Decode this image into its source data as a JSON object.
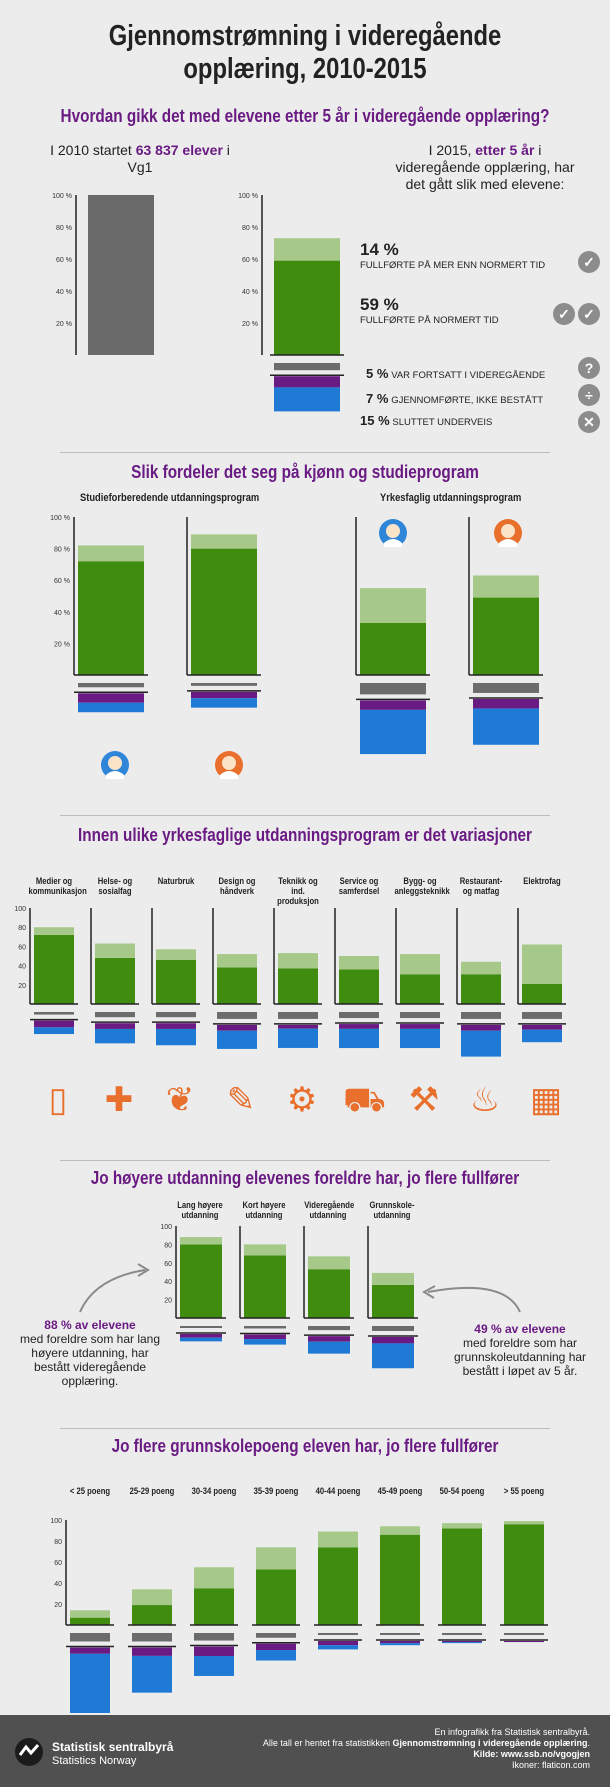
{
  "title": "Gjennomstrømning i videregående opplæring, 2010-2015",
  "colors": {
    "light_green": "#a6c98a",
    "green": "#3f8c0f",
    "grey": "#686868",
    "purple": "#6a1b83",
    "blue": "#1f7ad6",
    "orange": "#e86f2c",
    "bar_grey": "#6c6c6c"
  },
  "section1": {
    "heading": "Hvordan gikk det med elevene etter 5 år i videregående opplæring?",
    "left_text_1": "I 2010 startet ",
    "left_highlight": "63 837 elever",
    "left_text_2": " i Vg1",
    "right_text_1": "I 2015, ",
    "right_highlight": "etter 5 år",
    "right_text_2": " i videregående opplæring, har det gått slik med elevene:",
    "legend": [
      {
        "pct": "14 %",
        "text": "FULLFØRTE PÅ MER ENN NORMERT TID",
        "icon": "check-icon"
      },
      {
        "pct": "59 %",
        "text": "FULLFØRTE PÅ NORMERT TID",
        "icon": "double-check-icon"
      },
      {
        "pct": "5 %",
        "text": "VAR FORTSATT I VIDEREGÅENDE",
        "icon": "question-icon"
      },
      {
        "pct": "7 %",
        "text": "GJENNOMFØRTE, IKKE BESTÅTT",
        "icon": "divide-icon"
      },
      {
        "pct": "15 %",
        "text": "SLUTTET UNDERVEIS",
        "icon": "cross-icon"
      }
    ],
    "y_ticks": [
      "100 %",
      "80 %",
      "60 %",
      "40 %",
      "20 %"
    ]
  },
  "section2": {
    "heading": "Slik fordeler det seg på kjønn og studieprogram",
    "group_left": "Studieforberedende utdanningsprogram",
    "group_right": "Yrkesfaglig utdanningsprogram",
    "y_ticks": [
      "100 %",
      "80 %",
      "60 %",
      "40 %",
      "20 %"
    ]
  },
  "section3": {
    "heading": "Innen ulike yrkesfaglige utdanningsprogram er det variasjoner",
    "categories": [
      "Medier og kommunikasjon",
      "Helse- og sosialfag",
      "Naturbruk",
      "Design og håndverk",
      "Teknikk og ind. produksjon",
      "Service og samferdsel",
      "Bygg- og anleggsteknikk",
      "Restaurant- og matfag",
      "Elektrofag"
    ],
    "icons": [
      "phone-icon",
      "medkit-icon",
      "plant-hand-icon",
      "design-icon",
      "gears-icon",
      "truck-icon",
      "hammer-bricks-icon",
      "kitchen-tools-icon",
      "chip-icon"
    ]
  },
  "section4": {
    "heading": "Jo høyere utdanning elevenes foreldre har, jo flere fullfører",
    "categories": [
      "Lang høyere utdanning",
      "Kort høyere utdanning",
      "Videregående utdanning",
      "Grunnskole-utdanning"
    ],
    "left_highlight": "88 % av elevene",
    "left_text": "med foreldre som har lang høyere utdanning, har bestått videregående opplæring.",
    "right_highlight": "49 % av elevene",
    "right_text": "med foreldre som har grunnskoleutdanning har bestått i løpet av 5 år."
  },
  "section5": {
    "heading": "Jo flere grunnskolepoeng eleven har, jo flere fullfører",
    "categories": [
      "< 25 poeng",
      "25-29 poeng",
      "30-34 poeng",
      "35-39 poeng",
      "40-44 poeng",
      "45-49 poeng",
      "50-54 poeng",
      "> 55 poeng"
    ]
  },
  "footer": {
    "logo_line1": "Statistisk sentralbyrå",
    "logo_line2": "Statistics Norway",
    "line1": "En infografikk fra Statistisk sentralbyrå.",
    "line2_a": "Alle tall er hentet fra statistikken ",
    "line2_b": "Gjennomstrømning i videregående opplæring",
    "line2_c": ".",
    "line3": "Kilde: www.ssb.no/vgogjen",
    "line4": "Ikoner: flaticon.com"
  },
  "chart_data": [
    {
      "type": "bar",
      "title": "2010",
      "categories": [
        "I 2010"
      ],
      "series": [
        {
          "values": [
            100
          ]
        }
      ],
      "ylim": [
        0,
        100
      ]
    },
    {
      "type": "bar",
      "title": "2015",
      "categories": [
        "I 2015"
      ],
      "series": [
        {
          "name": "Fullførte på normert tid",
          "values": [
            59
          ]
        },
        {
          "name": "Fullførte på mer enn normert tid",
          "values": [
            14
          ]
        },
        {
          "name": "Var fortsatt i videregående",
          "values": [
            5
          ]
        },
        {
          "name": "Gjennomførte, ikke bestått",
          "values": [
            7
          ]
        },
        {
          "name": "Sluttet underveis",
          "values": [
            15
          ]
        }
      ],
      "ylim": [
        0,
        100
      ]
    },
    {
      "type": "bar",
      "categories": [
        "Studieforberedende gutter",
        "Studieforberedende jenter",
        "Yrkesfaglig gutter",
        "Yrkesfaglig jenter"
      ],
      "series": [
        {
          "name": "normert",
          "values": [
            72,
            80,
            33,
            49
          ]
        },
        {
          "name": "mer enn normert",
          "values": [
            10,
            9,
            22,
            14
          ]
        },
        {
          "name": "fortsatt",
          "values": [
            3,
            2,
            8,
            7
          ]
        },
        {
          "name": "ikke bestått",
          "values": [
            6,
            4,
            6,
            6
          ]
        },
        {
          "name": "sluttet",
          "values": [
            6,
            6,
            28,
            23
          ]
        }
      ],
      "ylim": [
        0,
        100
      ]
    },
    {
      "type": "bar",
      "categories": [
        "Medier og kommunikasjon",
        "Helse- og sosialfag",
        "Naturbruk",
        "Design og håndverk",
        "Teknikk og ind. produksjon",
        "Service og samferdsel",
        "Bygg- og anleggsteknikk",
        "Restaurant- og matfag",
        "Elektrofag"
      ],
      "series": [
        {
          "name": "normert",
          "values": [
            72,
            48,
            46,
            38,
            37,
            36,
            31,
            31,
            21
          ]
        },
        {
          "name": "mer enn normert",
          "values": [
            8,
            15,
            11,
            14,
            16,
            14,
            21,
            13,
            41
          ]
        },
        {
          "name": "fortsatt",
          "values": [
            3,
            6,
            6,
            8,
            8,
            7,
            7,
            8,
            8
          ]
        },
        {
          "name": "ikke bestått",
          "values": [
            7,
            6,
            6,
            6,
            4,
            5,
            5,
            6,
            5
          ]
        },
        {
          "name": "sluttet",
          "values": [
            7,
            15,
            17,
            19,
            20,
            20,
            20,
            27,
            13
          ]
        }
      ],
      "ylim": [
        0,
        100
      ]
    },
    {
      "type": "bar",
      "categories": [
        "Lang høyere utdanning",
        "Kort høyere utdanning",
        "Videregående utdanning",
        "Grunnskole-utdanning"
      ],
      "series": [
        {
          "name": "normert",
          "values": [
            80,
            68,
            53,
            36
          ]
        },
        {
          "name": "mer enn normert",
          "values": [
            8,
            12,
            14,
            13
          ]
        },
        {
          "name": "fortsatt",
          "values": [
            2,
            3,
            5,
            6
          ]
        },
        {
          "name": "ikke bestått",
          "values": [
            4,
            5,
            6,
            7
          ]
        },
        {
          "name": "sluttet",
          "values": [
            4,
            6,
            13,
            27
          ]
        }
      ],
      "ylim": [
        0,
        100
      ]
    },
    {
      "type": "bar",
      "categories": [
        "< 25 poeng",
        "25-29 poeng",
        "30-34 poeng",
        "35-39 poeng",
        "40-44 poeng",
        "45-49 poeng",
        "50-54 poeng",
        "> 55 poeng"
      ],
      "series": [
        {
          "name": "normert",
          "values": [
            7,
            19,
            35,
            53,
            74,
            86,
            92,
            96
          ]
        },
        {
          "name": "mer enn normert",
          "values": [
            7,
            15,
            20,
            21,
            15,
            8,
            5,
            3
          ]
        },
        {
          "name": "fortsatt",
          "values": [
            9,
            9,
            8,
            5,
            2,
            1,
            1,
            0
          ]
        },
        {
          "name": "ikke bestått",
          "values": [
            6,
            8,
            9,
            6,
            4,
            2,
            1,
            1
          ]
        },
        {
          "name": "sluttet",
          "values": [
            65,
            35,
            19,
            10,
            4,
            2,
            1,
            0
          ]
        }
      ],
      "ylim": [
        0,
        100
      ]
    }
  ]
}
